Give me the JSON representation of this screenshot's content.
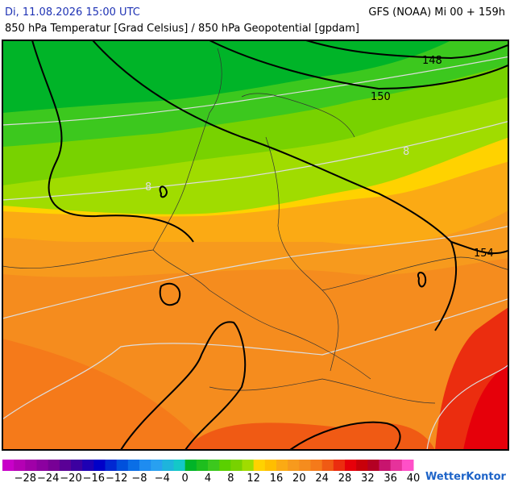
{
  "header": {
    "left": "Di, 11.08.2026 15:00 UTC",
    "right": "GFS (NOAA) Mi 00 + 159h",
    "subtitle": "850 hPa Temperatur [Grad Celsius] / 850 hPa Geopotential [gpdam]"
  },
  "map": {
    "contour_labels": [
      "148",
      "150",
      "154",
      "8",
      "8"
    ]
  },
  "legend": {
    "labels": [
      "−28",
      "−24",
      "−20",
      "−16",
      "−12",
      "−8",
      "−4",
      "0",
      "4",
      "8",
      "12",
      "16",
      "20",
      "24",
      "28",
      "32",
      "36",
      "40"
    ],
    "colors": [
      "#c800c8",
      "#b400b4",
      "#a000a8",
      "#8c00a0",
      "#780096",
      "#5a0096",
      "#3c00a0",
      "#1e00b4",
      "#0000c8",
      "#0028d2",
      "#0050dc",
      "#0a6ee6",
      "#1e8cf0",
      "#28a0f0",
      "#1eb4dc",
      "#14c8c8",
      "#00b428",
      "#1ebe1e",
      "#3cc81e",
      "#5ad000",
      "#78d200",
      "#a0dc00",
      "#ffd200",
      "#ffbe00",
      "#fbaa14",
      "#f79a1d",
      "#f58c1e",
      "#f57a1a",
      "#f05a14",
      "#eb2d0f",
      "#e6000a",
      "#c8000a",
      "#b40023",
      "#c8146e",
      "#e6329b",
      "#ff50c8"
    ]
  },
  "logo": "WetterKontor"
}
